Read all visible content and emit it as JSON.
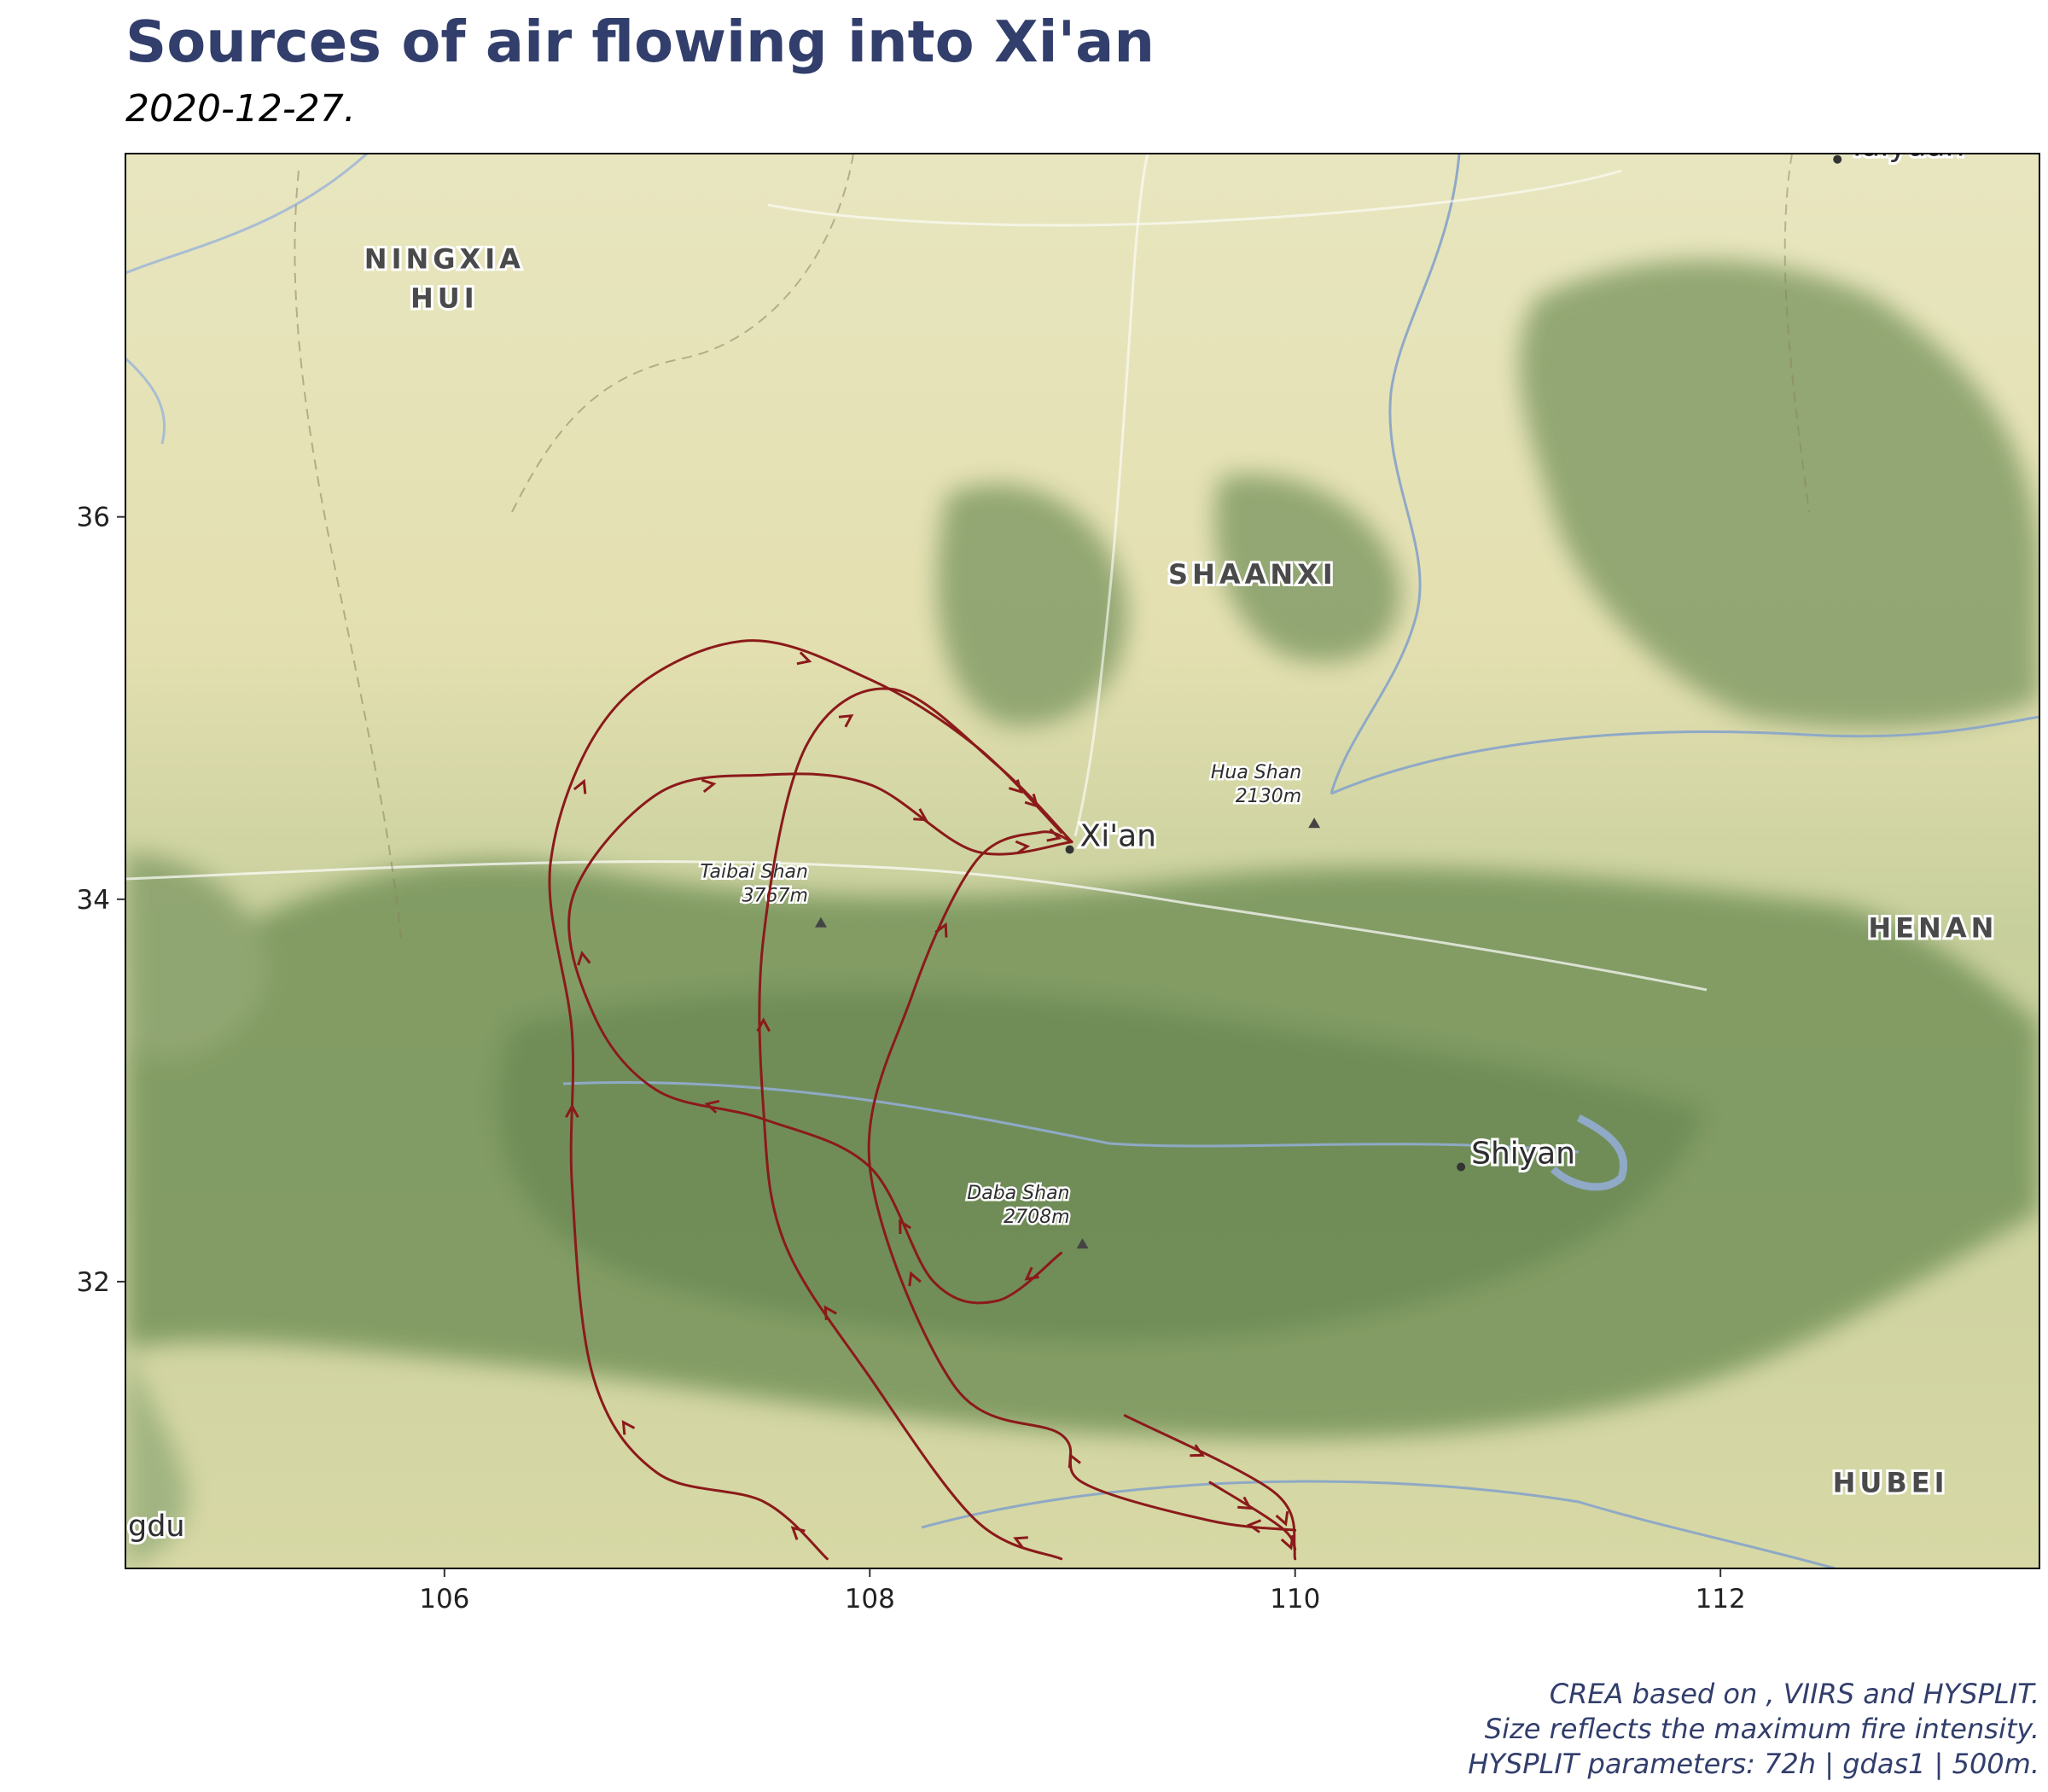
{
  "title": "Sources of air flowing into Xi'an",
  "subtitle": "2020-12-27.",
  "map": {
    "lon_range": [
      104.5,
      113.5
    ],
    "lat_range": [
      30.5,
      37.9
    ],
    "x_ticks": [
      106,
      108,
      110,
      112
    ],
    "y_ticks": [
      32,
      34,
      36
    ],
    "x_tick_labels": [
      "106",
      "108",
      "110",
      "112"
    ],
    "y_tick_labels": [
      "32",
      "34",
      "36"
    ],
    "basemap_attribution": "gdu",
    "region_labels": [
      {
        "lines": [
          "NINGXIA",
          "HUI"
        ],
        "lon": 106.0,
        "lat": 37.3
      },
      {
        "lines": [
          "SHAANXI"
        ],
        "lon": 109.8,
        "lat": 35.65
      },
      {
        "lines": [
          "HENAN"
        ],
        "lon": 113.0,
        "lat": 33.8
      },
      {
        "lines": [
          "HUBEI"
        ],
        "lon": 112.8,
        "lat": 30.9
      }
    ],
    "cities": [
      {
        "name": "Xi'an",
        "lon": 108.94,
        "lat": 34.26,
        "marker": true
      },
      {
        "name": "Shiyan",
        "lon": 110.78,
        "lat": 32.6,
        "marker": true
      },
      {
        "name": "Taiyuan",
        "lon": 112.55,
        "lat": 37.87,
        "marker": true
      }
    ],
    "peaks": [
      {
        "name": "Taibai Shan",
        "height": "3767m",
        "lon": 107.77,
        "lat": 33.88
      },
      {
        "name": "Hua Shan",
        "height": "2130m",
        "lon": 110.09,
        "lat": 34.4
      },
      {
        "name": "Daba Shan",
        "height": "2708m",
        "lon": 109.0,
        "lat": 32.2
      }
    ],
    "trajectory_color": "#8b1a1a",
    "trajectories": [
      {
        "points": [
          [
            107.8,
            30.55
          ],
          [
            107.5,
            30.85
          ],
          [
            107.0,
            31.0
          ],
          [
            106.7,
            31.5
          ],
          [
            106.6,
            32.5
          ],
          [
            106.6,
            33.3
          ],
          [
            106.5,
            34.2
          ],
          [
            106.8,
            35.0
          ],
          [
            107.4,
            35.35
          ],
          [
            108.0,
            35.15
          ],
          [
            108.5,
            34.8
          ],
          [
            108.9,
            34.35
          ]
        ]
      },
      {
        "points": [
          [
            108.9,
            30.55
          ],
          [
            108.5,
            30.75
          ],
          [
            108.0,
            31.5
          ],
          [
            107.6,
            32.2
          ],
          [
            107.5,
            32.9
          ],
          [
            107.5,
            33.8
          ],
          [
            107.7,
            34.8
          ],
          [
            108.1,
            35.1
          ],
          [
            108.6,
            34.7
          ],
          [
            108.95,
            34.3
          ]
        ]
      },
      {
        "points": [
          [
            109.2,
            31.3
          ],
          [
            109.9,
            30.9
          ],
          [
            110.0,
            30.6
          ]
        ]
      },
      {
        "points": [
          [
            109.6,
            30.95
          ],
          [
            109.95,
            30.7
          ],
          [
            110.0,
            30.55
          ]
        ]
      },
      {
        "points": [
          [
            110.0,
            30.7
          ],
          [
            109.6,
            30.75
          ],
          [
            109.0,
            30.95
          ],
          [
            108.9,
            31.2
          ],
          [
            108.4,
            31.45
          ],
          [
            108.0,
            32.6
          ],
          [
            108.2,
            33.5
          ],
          [
            108.5,
            34.2
          ],
          [
            108.8,
            34.35
          ],
          [
            108.95,
            34.3
          ]
        ]
      },
      {
        "points": [
          [
            108.9,
            32.15
          ],
          [
            108.6,
            31.9
          ],
          [
            108.3,
            32.0
          ],
          [
            108.0,
            32.6
          ],
          [
            107.5,
            32.85
          ],
          [
            107.0,
            33.0
          ],
          [
            106.7,
            33.4
          ],
          [
            106.6,
            34.0
          ],
          [
            107.0,
            34.55
          ],
          [
            107.5,
            34.65
          ],
          [
            108.0,
            34.6
          ],
          [
            108.5,
            34.25
          ],
          [
            108.95,
            34.3
          ]
        ]
      }
    ]
  },
  "caption_lines": [
    "CREA based on , VIIRS and HYSPLIT.",
    "Size reflects the maximum fire intensity.",
    "HYSPLIT parameters: 72h | gdas1 | 500m."
  ]
}
